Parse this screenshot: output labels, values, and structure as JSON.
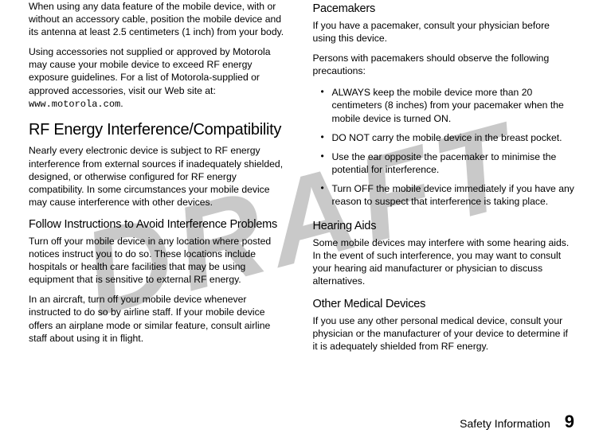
{
  "watermark": "DRAFT",
  "left": {
    "p1": "When using any data feature of the mobile device, with or without an accessory cable, position the mobile device and its antenna at least 2.5 centimeters (1 inch) from your body.",
    "p2_a": "Using accessories not supplied or approved by Motorola may cause your mobile device to exceed RF energy exposure guidelines. For a list of Motorola-supplied or approved accessories, visit our Web site at: ",
    "p2_url": "www.motorola.com",
    "p2_b": ".",
    "h2": "RF Energy Interference/Compatibility",
    "p3": "Nearly every electronic device is subject to RF energy interference from external sources if inadequately shielded, designed, or otherwise configured for RF energy compatibility. In some circumstances your mobile device may cause interference with other devices.",
    "h3": "Follow Instructions to Avoid Interference Problems",
    "p4": "Turn off your mobile device in any location where posted notices instruct you to do so. These locations include hospitals or health care facilities that may be using equipment that is sensitive to external RF energy.",
    "p5": "In an aircraft, turn off your mobile device whenever instructed to do so by airline staff. If your mobile device offers an airplane mode or similar feature, consult airline staff about using it in flight."
  },
  "right": {
    "h3a": "Pacemakers",
    "p1": "If you have a pacemaker, consult your physician before using this device.",
    "p2": "Persons with pacemakers should observe the following precautions:",
    "bullets": [
      "ALWAYS keep the mobile device more than 20 centimeters (8 inches) from your pacemaker when the mobile device is turned ON.",
      "DO NOT carry the mobile device in the breast pocket.",
      "Use the ear opposite the pacemaker to minimise the potential for interference.",
      "Turn OFF the mobile device immediately if you have any reason to suspect that interference is taking place."
    ],
    "h3b": "Hearing Aids",
    "p3": "Some mobile devices may interfere with some hearing aids. In the event of such interference, you may want to consult your hearing aid manufacturer or physician to discuss alternatives.",
    "h3c": "Other Medical Devices",
    "p4": "If you use any other personal medical device, consult your physician or the manufacturer of your device to determine if it is adequately shielded from RF energy."
  },
  "footer": {
    "label": "Safety Information",
    "page": "9"
  }
}
